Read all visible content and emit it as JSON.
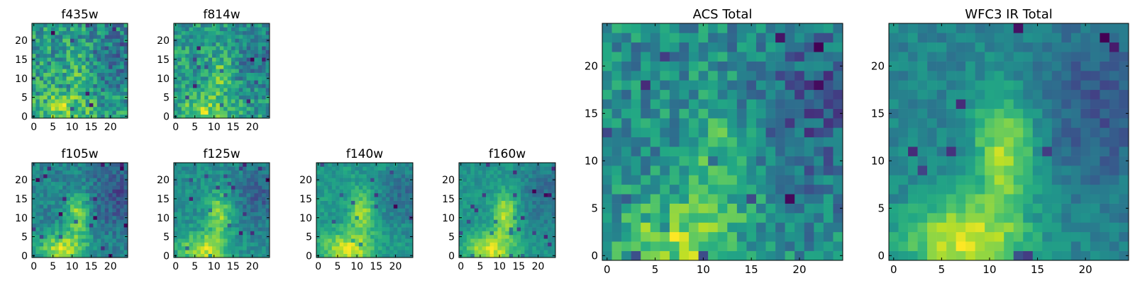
{
  "chart_data": {
    "type": "heatmap",
    "colormap": "viridis",
    "panels": [
      {
        "id": "f435w",
        "title": "f435w",
        "grid": [
          25,
          25
        ],
        "xticks": [
          0,
          5,
          10,
          15,
          20
        ],
        "yticks": [
          0,
          5,
          10,
          15,
          20
        ]
      },
      {
        "id": "f814w",
        "title": "f814w",
        "grid": [
          25,
          25
        ],
        "xticks": [
          0,
          5,
          10,
          15,
          20
        ],
        "yticks": [
          0,
          5,
          10,
          15,
          20
        ]
      },
      {
        "id": "f105w",
        "title": "f105w",
        "grid": [
          25,
          25
        ],
        "xticks": [
          0,
          5,
          10,
          15,
          20
        ],
        "yticks": [
          0,
          5,
          10,
          15,
          20
        ]
      },
      {
        "id": "f125w",
        "title": "f125w",
        "grid": [
          25,
          25
        ],
        "xticks": [
          0,
          5,
          10,
          15,
          20
        ],
        "yticks": [
          0,
          5,
          10,
          15,
          20
        ]
      },
      {
        "id": "f140w",
        "title": "f140w",
        "grid": [
          25,
          25
        ],
        "xticks": [
          0,
          5,
          10,
          15,
          20
        ],
        "yticks": [
          0,
          5,
          10,
          15,
          20
        ]
      },
      {
        "id": "f160w",
        "title": "f160w",
        "grid": [
          25,
          25
        ],
        "xticks": [
          0,
          5,
          10,
          15,
          20
        ],
        "yticks": [
          0,
          5,
          10,
          15,
          20
        ]
      },
      {
        "id": "acs-total",
        "title": "ACS Total",
        "grid": [
          25,
          25
        ],
        "xticks": [
          0,
          5,
          10,
          15,
          20
        ],
        "yticks": [
          0,
          5,
          10,
          15,
          20
        ]
      },
      {
        "id": "wfc3-ir-total",
        "title": "WFC3 IR Total",
        "grid": [
          25,
          25
        ],
        "xticks": [
          0,
          5,
          10,
          15,
          20
        ],
        "yticks": [
          0,
          5,
          10,
          15,
          20
        ]
      }
    ]
  }
}
